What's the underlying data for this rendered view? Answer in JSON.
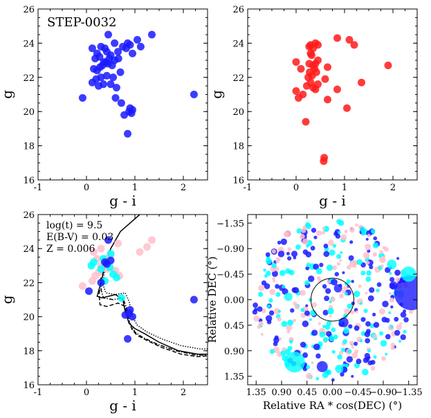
{
  "colors": {
    "member": "#1a1aff",
    "candidate": "#ff1a1a",
    "field_a": "#ffc0cb",
    "field_b": "#00ffff"
  },
  "chart_data": [
    {
      "id": "cmd-members",
      "type": "scatter",
      "title": "STEP-0032",
      "xlabel": "g - i",
      "ylabel": "g",
      "xlim": [
        -1,
        2.5
      ],
      "ylim": [
        26,
        16
      ],
      "xticks": [
        "-1",
        "0",
        "1",
        "2"
      ],
      "yticks": [
        "16",
        "18",
        "20",
        "22",
        "24",
        "26"
      ],
      "series": [
        {
          "color": "#1a1aff",
          "x": [
            0.85,
            0.78,
            0.93,
            0.88,
            0.95,
            0.9,
            0.6,
            0.72,
            -0.08,
            0.12,
            0.2,
            0.25,
            0.3,
            0.35,
            0.42,
            0.5,
            0.55,
            0.62,
            0.7,
            0.15,
            0.22,
            0.28,
            0.33,
            0.4,
            0.47,
            0.53,
            0.58,
            0.65,
            0.75,
            0.85,
            0.95,
            1.12,
            1.35,
            0.45,
            0.38,
            0.3,
            0.22,
            0.12,
            0.18,
            0.27,
            0.36,
            0.42,
            0.5,
            0.58,
            0.66,
            0.82,
            0.9,
            1.05,
            0.44,
            2.22
          ],
          "y": [
            18.7,
            19.8,
            19.9,
            20.0,
            20.1,
            20.2,
            20.8,
            20.5,
            20.8,
            21.7,
            21.9,
            21.5,
            22.0,
            21.6,
            22.1,
            21.6,
            22.0,
            21.4,
            22.3,
            22.5,
            22.4,
            22.6,
            22.7,
            22.9,
            23.1,
            22.7,
            23.0,
            23.5,
            23.8,
            24.0,
            23.4,
            23.8,
            24.5,
            24.5,
            23.7,
            23.8,
            23.4,
            23.7,
            23.1,
            23.2,
            22.9,
            23.5,
            23.3,
            24.0,
            23.1,
            23.7,
            23.9,
            24.2,
            22.8,
            21.0
          ]
        }
      ]
    },
    {
      "id": "cmd-candidates",
      "type": "scatter",
      "xlabel": "g - i",
      "ylabel": "g",
      "xlim": [
        -1,
        2.5
      ],
      "ylim": [
        26,
        16
      ],
      "xticks": [
        "-1",
        "0",
        "1",
        "2"
      ],
      "yticks": [
        "16",
        "18",
        "20",
        "22",
        "24",
        "26"
      ],
      "series": [
        {
          "color": "#ff1a1a",
          "x": [
            0.57,
            0.58,
            0.2,
            0.65,
            1.05,
            0.05,
            0.14,
            0.4,
            0.35,
            0.85,
            0.0,
            0.22,
            0.3,
            0.45,
            0.25,
            0.6,
            0.33,
            0.28,
            0.38,
            0.42,
            1.35,
            0.1,
            0.27,
            0.35,
            0.4,
            0.45,
            0.65,
            0.0,
            0.32,
            0.3,
            0.35,
            0.27,
            1.9,
            0.3,
            0.4,
            0.45,
            1.2,
            0.85,
            1.1
          ],
          "y": [
            17.1,
            17.3,
            19.4,
            20.7,
            20.2,
            20.8,
            21.0,
            21.3,
            21.4,
            21.3,
            21.2,
            21.5,
            21.7,
            21.6,
            22.0,
            21.9,
            22.1,
            22.3,
            22.5,
            22.3,
            21.7,
            22.5,
            22.8,
            22.7,
            22.8,
            23.0,
            22.6,
            22.9,
            23.3,
            23.4,
            23.7,
            23.8,
            22.7,
            23.9,
            24.0,
            23.9,
            23.9,
            24.3,
            24.2
          ]
        }
      ]
    },
    {
      "id": "cmd-isochrones",
      "type": "line",
      "xlabel": "g - i",
      "ylabel": "g",
      "xlim": [
        -1,
        2.5
      ],
      "ylim": [
        26,
        16
      ],
      "xticks": [
        "-1",
        "0",
        "1",
        "2"
      ],
      "yticks": [
        "16",
        "18",
        "20",
        "22",
        "24",
        "26"
      ],
      "annotations": [
        "log(t) = 9.5",
        "E(B-V) = 0.03",
        "Z = 0.006"
      ],
      "isochrones": [
        {
          "style": "solid",
          "x": [
            1.1,
            0.7,
            0.5,
            0.38,
            0.3,
            0.24,
            0.22,
            0.32,
            0.6,
            0.75,
            0.8,
            0.88,
            1.0,
            1.2,
            1.5,
            1.9,
            2.3,
            2.5
          ],
          "y": [
            26.0,
            25.0,
            24.0,
            23.0,
            22.0,
            21.4,
            21.2,
            21.1,
            21.3,
            21.0,
            20.3,
            19.6,
            19.3,
            19.0,
            18.5,
            18.0,
            17.8,
            17.8
          ]
        },
        {
          "style": "dashed",
          "x": [
            0.3,
            0.26,
            0.28,
            0.42,
            0.65,
            0.8,
            0.86,
            0.95,
            1.05,
            1.25,
            1.55,
            1.95,
            2.3,
            2.5
          ],
          "y": [
            22.3,
            21.3,
            20.7,
            20.6,
            20.8,
            20.6,
            19.8,
            19.2,
            18.9,
            18.6,
            18.2,
            17.8,
            17.65,
            17.7
          ]
        },
        {
          "style": "dashdot",
          "x": [
            0.34,
            0.3,
            0.35,
            0.55,
            0.75,
            0.83,
            0.9,
            1.0,
            1.15,
            1.45,
            1.85,
            2.25,
            2.5
          ],
          "y": [
            22.6,
            21.6,
            21.1,
            21.0,
            21.1,
            20.5,
            19.6,
            19.1,
            18.8,
            18.4,
            18.0,
            17.75,
            17.75
          ]
        },
        {
          "style": "dotted",
          "x": [
            0.38,
            0.34,
            0.4,
            0.6,
            0.8,
            0.88,
            0.95,
            1.05,
            1.25,
            1.55,
            1.95,
            2.35,
            2.5
          ],
          "y": [
            22.9,
            21.9,
            21.4,
            21.3,
            21.4,
            20.9,
            20.0,
            19.5,
            19.1,
            18.7,
            18.3,
            18.1,
            18.1
          ]
        }
      ],
      "series": [
        {
          "color": "#ffc0cb",
          "x": [
            -0.08,
            0.12,
            0.18,
            0.25,
            0.3,
            0.42,
            0.6,
            0.68,
            0.22,
            0.15,
            0.3,
            0.65,
            1.1,
            1.25,
            1.35,
            0.5,
            0.4
          ],
          "y": [
            21.8,
            22.1,
            22.4,
            22.6,
            23.0,
            22.8,
            22.7,
            22.4,
            23.4,
            23.8,
            24.0,
            24.3,
            23.8,
            24.1,
            24.5,
            23.6,
            23.4
          ]
        },
        {
          "color": "#00ffff",
          "x": [
            0.15,
            0.3,
            0.55,
            0.38,
            0.72,
            0.1,
            0.5,
            0.35,
            0.62,
            0.48
          ],
          "y": [
            23.2,
            22.8,
            22.5,
            22.1,
            21.1,
            23.0,
            23.7,
            23.4,
            22.3,
            22.9
          ]
        },
        {
          "color": "#1a1aff",
          "x": [
            0.85,
            0.8,
            0.95,
            0.88,
            0.9,
            0.05,
            0.3,
            0.42,
            0.5,
            0.45,
            0.38,
            2.22
          ],
          "y": [
            18.7,
            20.1,
            20.0,
            20.2,
            20.4,
            21.5,
            22.0,
            23.1,
            23.3,
            24.5,
            23.2,
            21.0
          ]
        }
      ]
    },
    {
      "id": "sky-map",
      "type": "scatter",
      "xlabel": "Relative RA * cos(DEC) (°)",
      "ylabel": "Relative DEC (°)",
      "xlim": [
        1.5,
        -1.5
      ],
      "ylim": [
        -1.5,
        1.5
      ],
      "xticks": [
        "1.35",
        "0.90",
        "0.45",
        "0.00",
        "−0.45",
        "−0.90",
        "−1.35"
      ],
      "yticks": [
        "1.35",
        "0.90",
        "0.45",
        "0.00",
        "−0.45",
        "−0.90",
        "−1.35"
      ],
      "circle_radius": 0.38,
      "big_points": [
        {
          "color": "#00ffff",
          "x": 0.67,
          "y": 1.1,
          "size": 15
        },
        {
          "color": "#1a1aff",
          "x": 0.18,
          "y": 1.18,
          "size": 8
        },
        {
          "color": "#00ffff",
          "x": -0.12,
          "y": 1.22,
          "size": 6
        },
        {
          "color": "#1a1aff",
          "x": -0.2,
          "y": 0.4,
          "size": 7
        },
        {
          "color": "#1a1aff",
          "x": -1.4,
          "y": -0.12,
          "size": 25
        },
        {
          "color": "#00ffff",
          "x": -1.35,
          "y": -0.45,
          "size": 11
        },
        {
          "color": "#00ffff",
          "x": -1.05,
          "y": -0.62,
          "size": 7
        },
        {
          "color": "#1a1aff",
          "x": -1.08,
          "y": -0.25,
          "size": 6
        },
        {
          "color": "#1a1aff",
          "x": -0.1,
          "y": -0.2,
          "size": 6
        },
        {
          "color": "#00ffff",
          "x": 0.78,
          "y": -0.05,
          "size": 6
        }
      ]
    }
  ]
}
